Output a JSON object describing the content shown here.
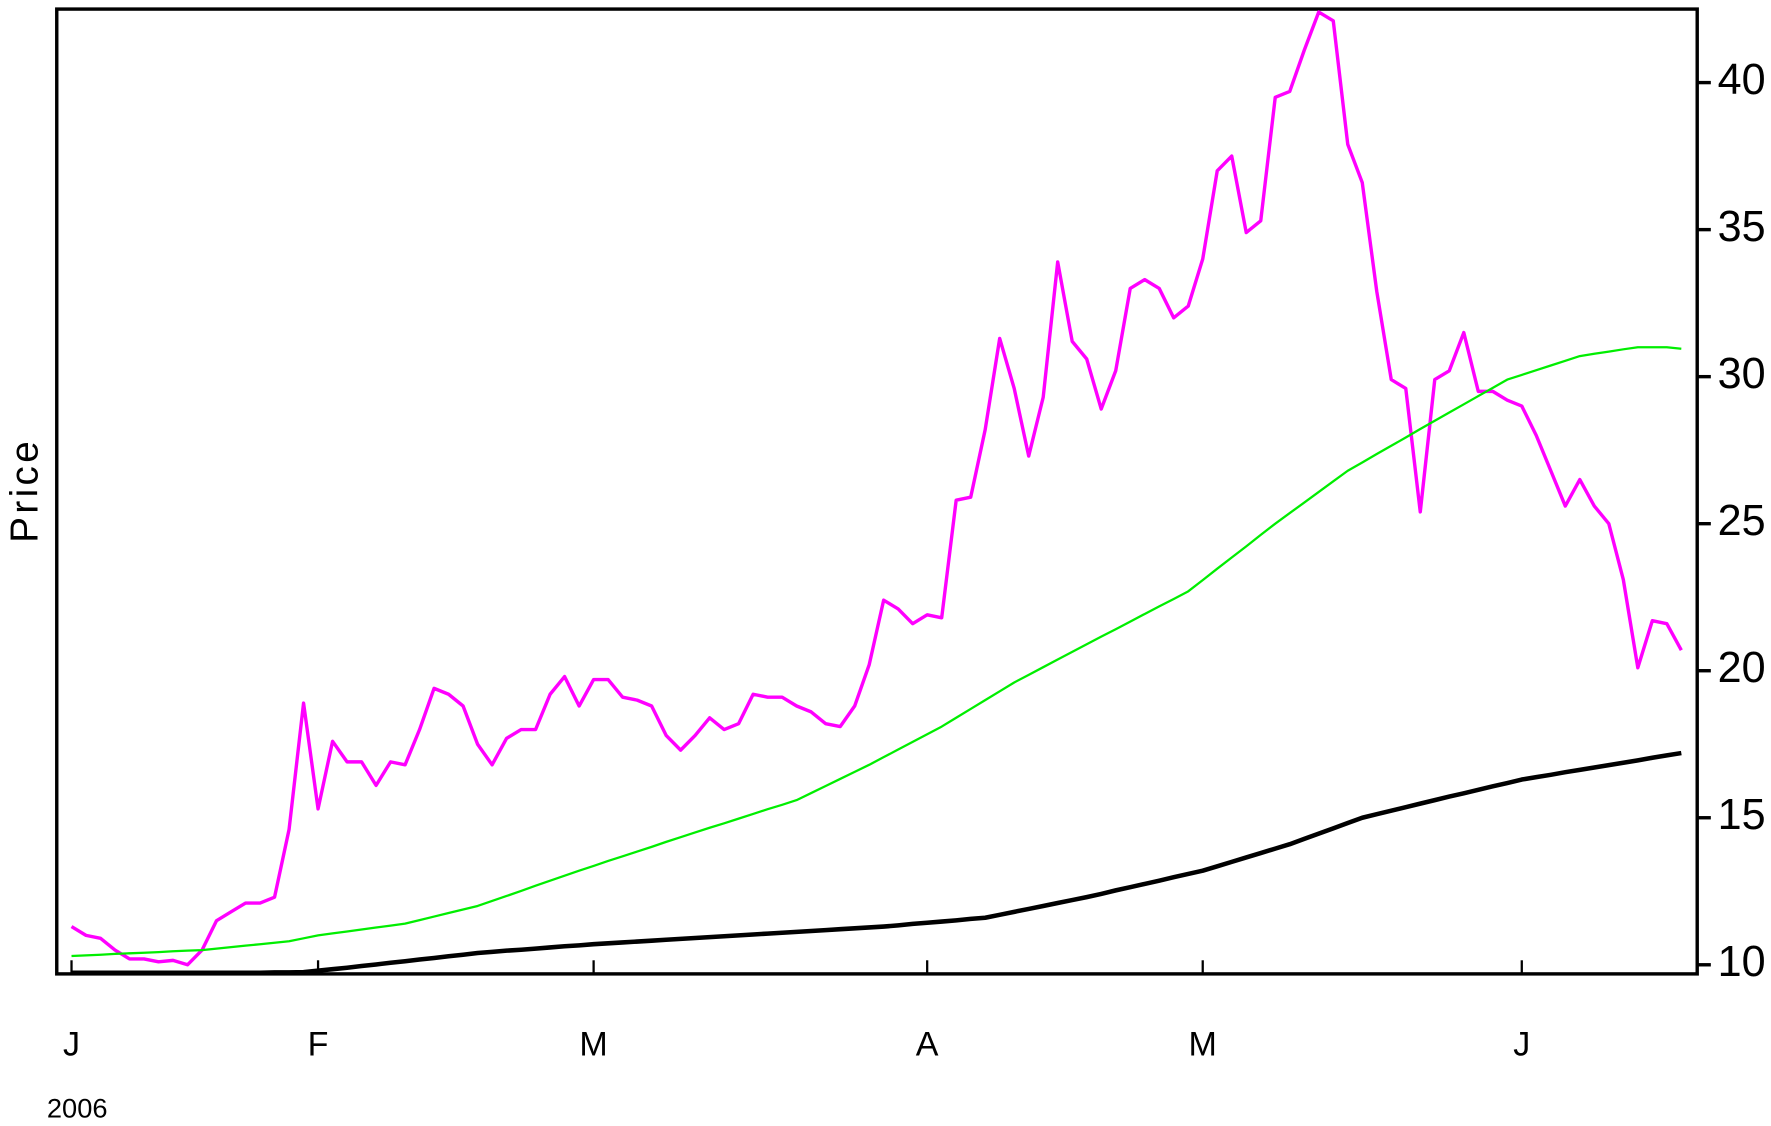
{
  "chart_data": {
    "type": "line",
    "y_label": "Price",
    "y_axis_side": "right",
    "x_sublabel": "2006",
    "categories": [
      "J",
      null,
      null,
      null,
      null,
      null,
      null,
      null,
      null,
      null,
      null,
      null,
      null,
      null,
      null,
      null,
      null,
      "F",
      null,
      null,
      null,
      null,
      null,
      null,
      null,
      null,
      null,
      null,
      null,
      null,
      null,
      null,
      null,
      null,
      null,
      null,
      "M",
      null,
      null,
      null,
      null,
      null,
      null,
      null,
      null,
      null,
      null,
      null,
      null,
      null,
      null,
      null,
      null,
      null,
      null,
      null,
      null,
      null,
      null,
      "A",
      null,
      null,
      null,
      null,
      null,
      null,
      null,
      null,
      null,
      null,
      null,
      null,
      null,
      null,
      null,
      null,
      null,
      null,
      "M",
      null,
      null,
      null,
      null,
      null,
      null,
      null,
      null,
      null,
      null,
      null,
      null,
      null,
      null,
      null,
      null,
      null,
      null,
      null,
      null,
      null,
      "J",
      null,
      null,
      null,
      null,
      null,
      null,
      null,
      null,
      null,
      null,
      null
    ],
    "series": [
      {
        "color": "#ff00ff",
        "values": [
          11.3,
          11.0,
          10.9,
          10.5,
          10.2,
          10.2,
          10.1,
          10.15,
          10.0,
          10.5,
          11.5,
          11.8,
          12.1,
          12.1,
          12.3,
          14.6,
          18.9,
          15.3,
          17.6,
          16.9,
          16.9,
          16.1,
          16.9,
          16.8,
          18.0,
          19.4,
          19.2,
          18.8,
          17.5,
          16.8,
          17.7,
          18.0,
          18.0,
          19.2,
          19.8,
          18.8,
          19.7,
          19.7,
          19.1,
          19.0,
          18.8,
          17.8,
          17.3,
          17.8,
          18.4,
          18.0,
          18.2,
          19.2,
          19.1,
          19.1,
          18.8,
          18.6,
          18.2,
          18.1,
          18.8,
          20.2,
          22.4,
          22.1,
          21.6,
          21.9,
          21.8,
          25.8,
          25.9,
          28.2,
          31.3,
          29.6,
          27.3,
          29.3,
          33.9,
          31.2,
          30.6,
          28.9,
          30.2,
          33.0,
          33.3,
          33.0,
          32.0,
          32.4,
          34.0,
          37.0,
          37.5,
          34.9,
          35.3,
          39.5,
          39.7,
          41.1,
          42.4,
          42.1,
          37.9,
          36.6,
          32.9,
          29.9,
          29.6,
          25.4,
          29.9,
          30.2,
          31.5,
          29.5,
          29.5,
          29.2,
          29.0,
          28.0,
          26.8,
          25.6,
          26.5,
          25.6,
          25.0,
          23.1,
          20.1,
          21.7,
          21.6,
          20.7
        ]
      },
      {
        "color": "#00ee00",
        "values": [
          10.3,
          10.32,
          10.34,
          10.37,
          10.39,
          10.41,
          10.43,
          10.46,
          10.48,
          10.5,
          10.55,
          10.6,
          10.65,
          10.7,
          10.75,
          10.8,
          10.9,
          11.0,
          11.07,
          11.13,
          11.2,
          11.27,
          11.33,
          11.4,
          11.52,
          11.64,
          11.76,
          11.88,
          12.0,
          12.17,
          12.34,
          12.51,
          12.69,
          12.86,
          13.03,
          13.2,
          13.36,
          13.53,
          13.69,
          13.85,
          14.01,
          14.18,
          14.34,
          14.5,
          14.66,
          14.81,
          14.97,
          15.13,
          15.29,
          15.44,
          15.6,
          15.84,
          16.08,
          16.32,
          16.56,
          16.8,
          17.06,
          17.32,
          17.58,
          17.84,
          18.1,
          18.4,
          18.7,
          19.0,
          19.3,
          19.6,
          19.86,
          20.12,
          20.38,
          20.64,
          20.9,
          21.16,
          21.41,
          21.67,
          21.93,
          22.19,
          22.44,
          22.7,
          23.08,
          23.47,
          23.85,
          24.23,
          24.62,
          25.0,
          25.36,
          25.72,
          26.08,
          26.44,
          26.8,
          27.08,
          27.37,
          27.65,
          27.93,
          28.22,
          28.5,
          28.78,
          29.06,
          29.34,
          29.62,
          29.9,
          30.06,
          30.22,
          30.38,
          30.54,
          30.7,
          30.78,
          30.85,
          30.93,
          31.0,
          31.0,
          31.0,
          30.95
        ]
      },
      {
        "color": "#000000",
        "values": [
          9.73,
          9.73,
          9.73,
          9.73,
          9.73,
          9.73,
          9.73,
          9.73,
          9.73,
          9.73,
          9.73,
          9.73,
          9.73,
          9.73,
          9.74,
          9.74,
          9.75,
          9.8,
          9.85,
          9.9,
          9.96,
          10.01,
          10.07,
          10.12,
          10.18,
          10.23,
          10.29,
          10.34,
          10.4,
          10.44,
          10.48,
          10.51,
          10.55,
          10.59,
          10.63,
          10.66,
          10.7,
          10.73,
          10.76,
          10.79,
          10.82,
          10.85,
          10.88,
          10.91,
          10.94,
          10.97,
          11.0,
          11.03,
          11.06,
          11.09,
          11.12,
          11.15,
          11.18,
          11.21,
          11.24,
          11.27,
          11.3,
          11.34,
          11.39,
          11.43,
          11.47,
          11.51,
          11.56,
          11.6,
          11.7,
          11.8,
          11.9,
          12.0,
          12.1,
          12.2,
          12.3,
          12.41,
          12.53,
          12.64,
          12.75,
          12.86,
          12.98,
          13.09,
          13.2,
          13.35,
          13.5,
          13.65,
          13.8,
          13.95,
          14.1,
          14.28,
          14.46,
          14.64,
          14.82,
          15.0,
          15.12,
          15.24,
          15.36,
          15.48,
          15.6,
          15.72,
          15.83,
          15.95,
          16.07,
          16.18,
          16.3,
          16.38,
          16.46,
          16.55,
          16.63,
          16.71,
          16.79,
          16.87,
          16.95,
          17.04,
          17.12,
          17.2
        ]
      }
    ],
    "ylim": [
      9.69,
      42.5
    ],
    "yticks": [
      10,
      15,
      20,
      25,
      30,
      35,
      40
    ]
  }
}
